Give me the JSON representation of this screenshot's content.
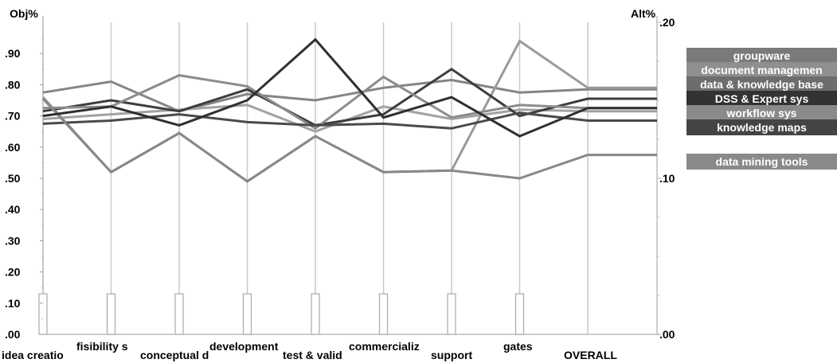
{
  "chart_data": {
    "type": "line",
    "chart_style": "parallel coordinates",
    "left_axis_label": "Obj%",
    "right_axis_label": "Alt%",
    "left_ticks": [
      ".00",
      ".10",
      ".20",
      ".30",
      ".40",
      ".50",
      ".60",
      ".70",
      ".80",
      ".90"
    ],
    "right_ticks": [
      ".00",
      ".10",
      ".20"
    ],
    "ylim_left": [
      0,
      1.0
    ],
    "ylim_right": [
      0,
      0.2
    ],
    "categories": [
      "idea creatio",
      "fisibility s",
      "conceptual d",
      "development",
      "test & valid",
      "commercializ",
      "support",
      "gates",
      "OVERALL"
    ],
    "category_weights": [
      0.13,
      0.13,
      0.13,
      0.13,
      0.13,
      0.13,
      0.13,
      0.13
    ],
    "grid": false,
    "legend_position": "right",
    "series": [
      {
        "name": "groupware",
        "color": "#858585",
        "values": [
          0.155,
          0.162,
          0.143,
          0.154,
          0.15,
          0.158,
          0.163,
          0.155,
          0.157
        ]
      },
      {
        "name": "document managemen",
        "color": "#a2a2a2",
        "values": [
          0.138,
          0.141,
          0.144,
          0.147,
          0.13,
          0.146,
          0.138,
          0.144,
          0.143
        ]
      },
      {
        "name": "data & knowledge base",
        "color": "#9a9a9a",
        "values": [
          0.152,
          0.104,
          0.129,
          0.098,
          0.127,
          0.104,
          0.105,
          0.188,
          0.158
        ]
      },
      {
        "name": "DSS & Expert sys",
        "color": "#3d3d3d",
        "values": [
          0.143,
          0.15,
          0.143,
          0.157,
          0.134,
          0.141,
          0.17,
          0.14,
          0.151
        ]
      },
      {
        "name": "workflow sys",
        "color": "#8c8c8c",
        "values": [
          0.145,
          0.146,
          0.166,
          0.159,
          0.132,
          0.165,
          0.139,
          0.147,
          0.145
        ]
      },
      {
        "name": "knowledge maps",
        "color": "#4a4a4a",
        "values": [
          0.135,
          0.137,
          0.141,
          0.136,
          0.134,
          0.135,
          0.132,
          0.142,
          0.137
        ]
      },
      {
        "name": "data mining tools",
        "color": "#888888",
        "values": [
          0.151,
          0.104,
          0.129,
          0.098,
          0.127,
          0.104,
          0.105,
          0.1,
          0.115
        ]
      }
    ],
    "extra_lines": [
      {
        "color": "#2f2f2f",
        "values": [
          0.14,
          0.146,
          0.134,
          0.15,
          0.189,
          0.139,
          0.152,
          0.127,
          0.145
        ]
      }
    ]
  },
  "legend": [
    {
      "label": "groupware",
      "color": "#7a7a7a"
    },
    {
      "label": "document managemen",
      "color": "#8f8f8f"
    },
    {
      "label": "data & knowledge base",
      "color": "#6d6d6d"
    },
    {
      "label": "DSS & Expert sys",
      "color": "#333333"
    },
    {
      "label": "workflow sys",
      "color": "#8a8a8a"
    },
    {
      "label": "knowledge maps",
      "color": "#444444"
    },
    {
      "label": "data mining tools",
      "color": "#8a8a8a"
    }
  ]
}
